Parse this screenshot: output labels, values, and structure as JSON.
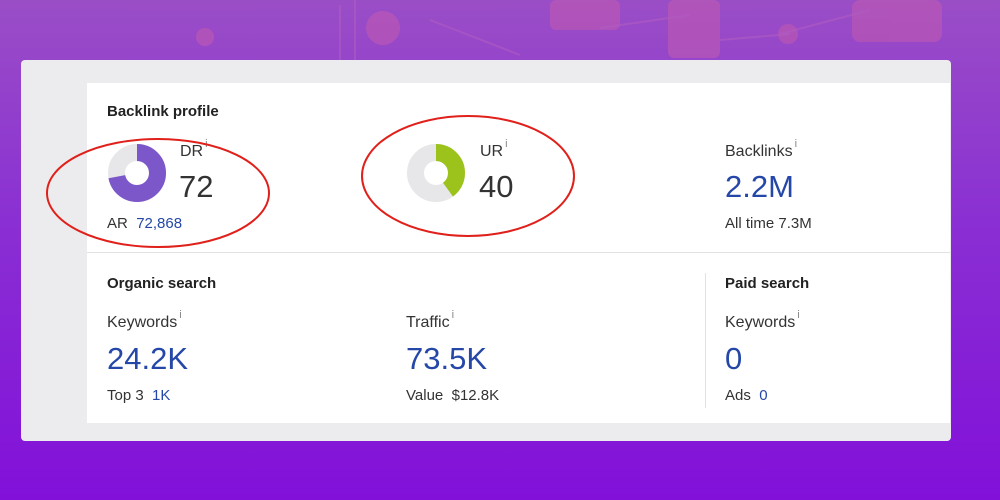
{
  "backlink_profile": {
    "title": "Backlink profile",
    "dr": {
      "label": "DR",
      "info": "i",
      "value": "72",
      "fraction": 0.72,
      "color": "#7b57c9",
      "track": "#e7e7e9"
    },
    "ar": {
      "label": "AR",
      "value": "72,868"
    },
    "ur": {
      "label": "UR",
      "info": "i",
      "value": "40",
      "fraction": 0.4,
      "color": "#9cc21c",
      "track": "#e7e7e9"
    },
    "backlinks": {
      "label": "Backlinks",
      "info": "i",
      "value": "2.2M",
      "sub_label": "All time",
      "sub_value": "7.3M"
    }
  },
  "organic_search": {
    "title": "Organic search",
    "keywords": {
      "label": "Keywords",
      "info": "i",
      "value": "24.2K",
      "sub_label": "Top 3",
      "sub_value": "1K"
    },
    "traffic": {
      "label": "Traffic",
      "info": "i",
      "value": "73.5K",
      "sub_label": "Value",
      "sub_value": "$12.8K"
    }
  },
  "paid_search": {
    "title": "Paid search",
    "keywords": {
      "label": "Keywords",
      "info": "i",
      "value": "0",
      "sub_label": "Ads",
      "sub_value": "0"
    }
  },
  "annotation_color": "#e0201a"
}
